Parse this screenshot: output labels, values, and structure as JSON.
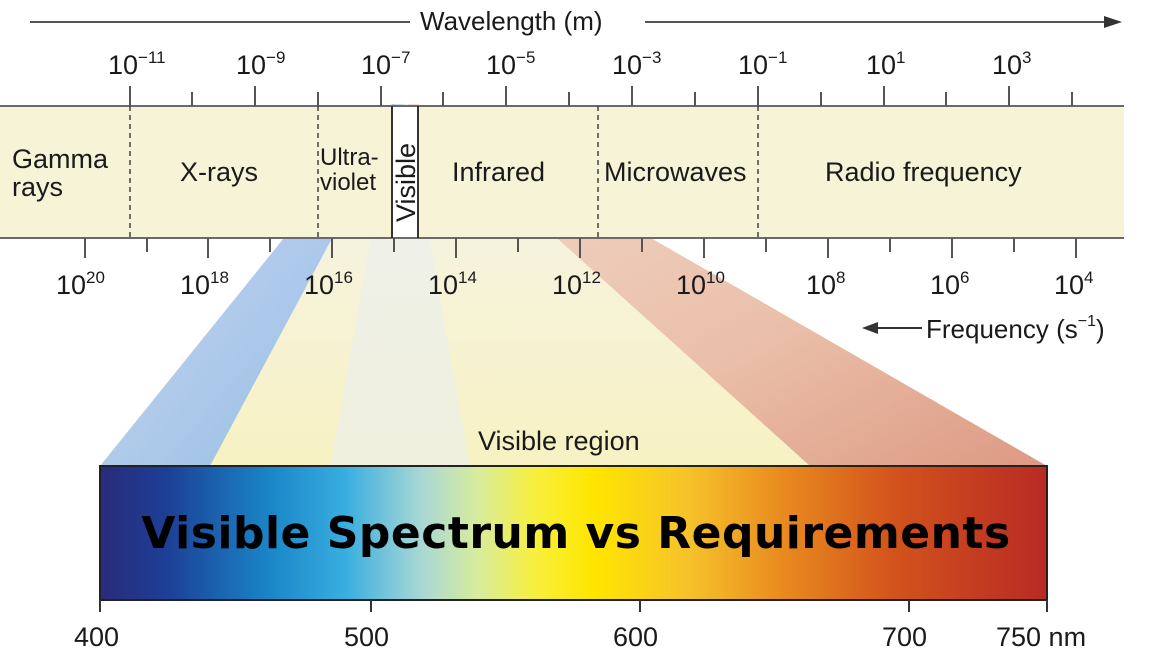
{
  "wavelength_axis": {
    "title": "Wavelength (m)",
    "ticks": [
      {
        "base": "10",
        "exp": "−11"
      },
      {
        "base": "10",
        "exp": "−9"
      },
      {
        "base": "10",
        "exp": "−7"
      },
      {
        "base": "10",
        "exp": "−5"
      },
      {
        "base": "10",
        "exp": "−3"
      },
      {
        "base": "10",
        "exp": "−1"
      },
      {
        "base": "10",
        "exp": "1"
      },
      {
        "base": "10",
        "exp": "3"
      }
    ]
  },
  "frequency_axis": {
    "title": "Frequency (s",
    "title_exp": "−1",
    "title_close": ")",
    "ticks": [
      {
        "base": "10",
        "exp": "20"
      },
      {
        "base": "10",
        "exp": "18"
      },
      {
        "base": "10",
        "exp": "16"
      },
      {
        "base": "10",
        "exp": "14"
      },
      {
        "base": "10",
        "exp": "12"
      },
      {
        "base": "10",
        "exp": "10"
      },
      {
        "base": "10",
        "exp": "8"
      },
      {
        "base": "10",
        "exp": "6"
      },
      {
        "base": "10",
        "exp": "4"
      }
    ]
  },
  "bands": {
    "gamma": "Gamma rays",
    "gamma_line1": "Gamma",
    "gamma_line2": "rays",
    "xrays": "X-rays",
    "uv_line1": "Ultra-",
    "uv_line2": "violet",
    "visible": "Visible",
    "infrared": "Infrared",
    "microwaves": "Microwaves",
    "radio": "Radio frequency"
  },
  "visible_region": {
    "title": "Visible region",
    "nm_ticks": [
      "400",
      "500",
      "600",
      "700",
      "750 nm"
    ]
  },
  "overlay_title": "Visible Spectrum vs Requirements",
  "colors": {
    "band_fill": "#f6f3d6",
    "axis_line": "#555555",
    "title_text": "#000000"
  }
}
